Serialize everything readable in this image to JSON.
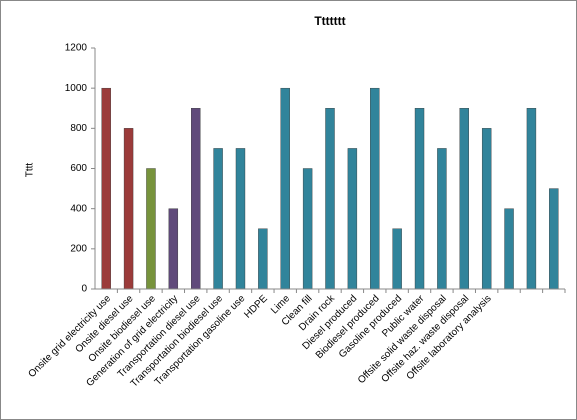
{
  "chart_data": {
    "type": "bar",
    "title": "Ttttttt",
    "y_label": "Tttt",
    "categories": [
      "Onsite grid electricity use",
      "Onsite diesel use",
      "Onsite biodiesel use",
      "Generation of grid electricity",
      "Transportation diesel use",
      "Transportation biodiesel use",
      "Transportation gasoline use",
      "HDPE",
      "Lime",
      "Clean fill",
      "Drain rock",
      "Diesel produced",
      "Biodiesel produced",
      "Gasoline produced",
      "Public water",
      "Offsite solid waste disposal",
      "Offsite haz. waste disposal",
      "Offsite laboratory analysis",
      null,
      null,
      null
    ],
    "values": [
      1000,
      800,
      600,
      400,
      900,
      700,
      700,
      300,
      1000,
      600,
      900,
      700,
      1000,
      300,
      900,
      700,
      900,
      800,
      400,
      900,
      500
    ],
    "colors": [
      "#9b3b3a",
      "#9b3b3a",
      "#77933c",
      "#604a7b",
      "#604a7b",
      "#31849b",
      "#31849b",
      "#31849b",
      "#31849b",
      "#31849b",
      "#31849b",
      "#31849b",
      "#31849b",
      "#31849b",
      "#31849b",
      "#31849b",
      "#31849b",
      "#31849b",
      "#31849b",
      "#31849b",
      "#31849b"
    ],
    "ylim": [
      0,
      1200
    ],
    "yticks": [
      0,
      200,
      400,
      600,
      800,
      1000,
      1200
    ],
    "grid": false
  }
}
